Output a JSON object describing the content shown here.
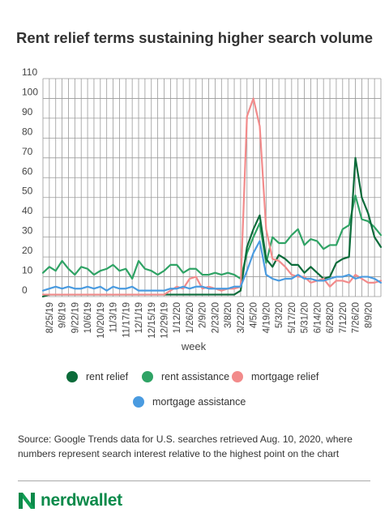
{
  "chart_data": {
    "type": "line",
    "title": "Rent relief terms sustaining higher search volume",
    "xlabel": "week",
    "ylabel": "",
    "ylim": [
      0,
      110
    ],
    "yticks": [
      0,
      10,
      20,
      30,
      40,
      50,
      60,
      70,
      80,
      90,
      100,
      110
    ],
    "grid": true,
    "legend_position": "bottom",
    "x_tick_labels": [
      "8/25/19",
      "9/8/19",
      "9/22/19",
      "10/6/19",
      "10/20/19",
      "11/3/19",
      "11/17/19",
      "12/1/19",
      "12/15/19",
      "12/29/19",
      "1/12/20",
      "1/26/20",
      "2/9/20",
      "2/23/20",
      "3/8/20",
      "3/22/20",
      "4/5/20",
      "4/19/20",
      "5/3/20",
      "5/17/20",
      "5/31/20",
      "6/14/20",
      "6/28/20",
      "7/12/20",
      "7/26/20",
      "8/9/20"
    ],
    "series": [
      {
        "name": "rent relief",
        "color": "#0b6b3a",
        "values": [
          0,
          1,
          1,
          1,
          1,
          1,
          1,
          1,
          1,
          1,
          1,
          1,
          1,
          1,
          1,
          1,
          1,
          1,
          1,
          1,
          1,
          1,
          1,
          1,
          1,
          1,
          1,
          1,
          1,
          1,
          1,
          3,
          25,
          34,
          41,
          19,
          15,
          21,
          19,
          16,
          16,
          12,
          15,
          12,
          9,
          10,
          17,
          19,
          20,
          70,
          50,
          42,
          30,
          25
        ]
      },
      {
        "name": "rent assistance",
        "color": "#2fa365",
        "values": [
          12,
          15,
          13,
          18,
          14,
          11,
          15,
          14,
          11,
          13,
          14,
          16,
          13,
          14,
          9,
          18,
          14,
          13,
          11,
          13,
          16,
          16,
          12,
          14,
          14,
          11,
          11,
          12,
          11,
          12,
          11,
          9,
          22,
          30,
          37,
          17,
          30,
          27,
          27,
          31,
          34,
          26,
          29,
          28,
          24,
          26,
          26,
          34,
          36,
          51,
          39,
          38,
          35,
          31
        ]
      },
      {
        "name": "mortgage relief",
        "color": "#f28b8b",
        "values": [
          1,
          1,
          1,
          1,
          1,
          1,
          1,
          1,
          1,
          1,
          1,
          1,
          1,
          1,
          1,
          1,
          1,
          1,
          1,
          1,
          3,
          5,
          4,
          9,
          10,
          4,
          5,
          4,
          3,
          4,
          4,
          5,
          91,
          100,
          86,
          34,
          19,
          18,
          15,
          11,
          10,
          10,
          7,
          8,
          9,
          5,
          8,
          8,
          7,
          11,
          9,
          7,
          7,
          8
        ]
      },
      {
        "name": "mortgage assistance",
        "color": "#4a9be0",
        "values": [
          3,
          4,
          5,
          4,
          5,
          4,
          4,
          5,
          4,
          5,
          3,
          5,
          4,
          4,
          5,
          3,
          3,
          3,
          3,
          3,
          4,
          4,
          5,
          4,
          5,
          5,
          4,
          4,
          4,
          4,
          5,
          5,
          13,
          22,
          28,
          11,
          9,
          8,
          9,
          9,
          11,
          9,
          9,
          8,
          8,
          9,
          10,
          10,
          11,
          9,
          10,
          10,
          9,
          7
        ]
      }
    ]
  },
  "legend": [
    {
      "label": "rent relief",
      "color": "#0b6b3a"
    },
    {
      "label": "rent assistance",
      "color": "#2fa365"
    },
    {
      "label": "mortgage relief",
      "color": "#f28b8b"
    },
    {
      "label": "mortgage assistance",
      "color": "#4a9be0"
    }
  ],
  "source": "Source: Google Trends data for U.S. searches retrieved Aug. 10, 2020, where numbers represent search interest relative to the highest point on the chart",
  "brand": {
    "name": "nerdwallet",
    "color": "#0b8a4a"
  }
}
